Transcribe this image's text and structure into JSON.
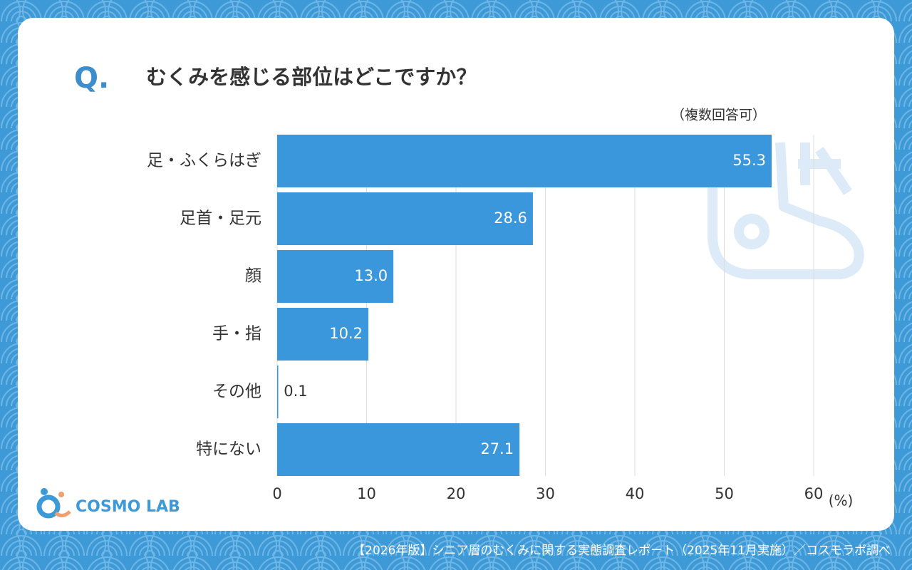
{
  "chart_data": {
    "type": "bar",
    "orientation": "horizontal",
    "question_label": "Q.",
    "title": "むくみを感じる部位はどこですか？",
    "annotation": "（複数回答可）",
    "categories": [
      "足・ふくらはぎ",
      "足首・足元",
      "顔",
      "手・指",
      "その他",
      "特にない"
    ],
    "values": [
      55.3,
      28.6,
      13.0,
      10.2,
      0.1,
      27.1
    ],
    "value_labels": [
      "55.3",
      "28.6",
      "13.0",
      "10.2",
      "0.1",
      "27.1"
    ],
    "color": "#3a97dc",
    "xlim": [
      0,
      60
    ],
    "xticks": [
      0,
      10,
      20,
      30,
      40,
      50,
      60
    ],
    "x_unit": "(%)",
    "grid": true,
    "logo": "COSMO LAB",
    "source": "【2026年版】シニア層のむくみに関する実態調査レポート（2025年11月実施）／コスモラボ調べ"
  }
}
